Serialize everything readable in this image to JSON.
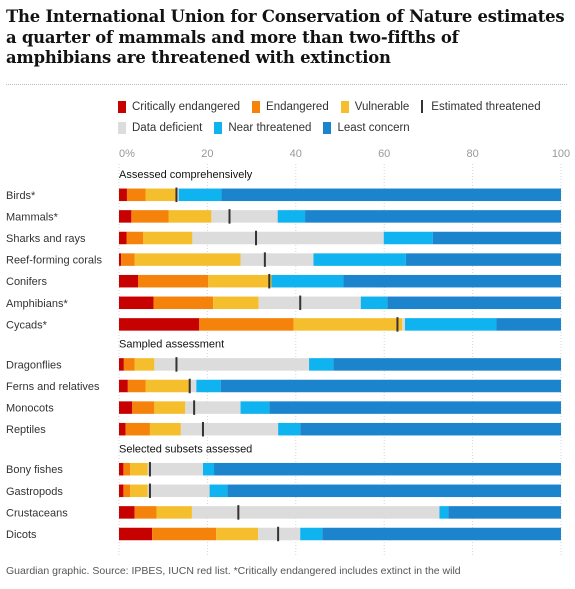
{
  "title": "The International Union for Conservation of Nature estimates a quarter of mammals and more than two-fifths of amphibians are threatened with extinction",
  "legend": [
    {
      "label": "Critically endangered",
      "color": "#c70000"
    },
    {
      "label": "Endangered",
      "color": "#f5820a"
    },
    {
      "label": "Vulnerable",
      "color": "#f5be2c"
    },
    {
      "label": "Estimated threatened",
      "color": "#333333",
      "marker": "tick"
    },
    {
      "label": "Data deficient",
      "color": "#dcdcdc"
    },
    {
      "label": "Near threatened",
      "color": "#0fb3f0"
    },
    {
      "label": "Least concern",
      "color": "#1b84cc"
    }
  ],
  "footer": "Guardian graphic. Source: IPBES, IUCN red list. *Critically endangered includes extinct in the wild",
  "chart_data": {
    "type": "bar",
    "orientation": "horizontal",
    "stacked": true,
    "xlim": [
      0,
      100
    ],
    "x_ticks": [
      "0%",
      "20",
      "40",
      "60",
      "80",
      "100"
    ],
    "grid": true,
    "legend_position": "top",
    "series_names": [
      "Critically endangered",
      "Endangered",
      "Vulnerable",
      "Data deficient",
      "Near threatened",
      "Least concern"
    ],
    "groups": [
      {
        "label": "Assessed comprehensively",
        "rows": [
          {
            "label": "Birds*",
            "values": [
              1.8,
              4.2,
              7.0,
              0.5,
              9.7,
              76.8
            ],
            "threatened": 13.0
          },
          {
            "label": "Mammals*",
            "values": [
              2.8,
              8.4,
              9.7,
              15.0,
              6.2,
              57.9
            ],
            "threatened": 25.0
          },
          {
            "label": "Sharks and rays",
            "values": [
              1.7,
              3.8,
              11.1,
              43.3,
              11.1,
              29.0
            ],
            "threatened": 31.0
          },
          {
            "label": "Reef-forming corals",
            "values": [
              0.5,
              3.0,
              24.0,
              16.5,
              20.9,
              35.1
            ],
            "threatened": 33.0
          },
          {
            "label": "Conifers",
            "values": [
              4.3,
              15.9,
              14.3,
              0.0,
              16.3,
              49.2
            ],
            "threatened": 34.0
          },
          {
            "label": "Amphibians*",
            "values": [
              7.8,
              13.5,
              10.3,
              23.1,
              6.0,
              39.3
            ],
            "threatened": 41.0
          },
          {
            "label": "Cycads*",
            "values": [
              18.1,
              21.4,
              24.6,
              0.6,
              20.7,
              14.6
            ],
            "threatened": 63.0
          }
        ]
      },
      {
        "label": "Sampled assessment",
        "rows": [
          {
            "label": "Dragonflies",
            "values": [
              1.1,
              2.4,
              4.5,
              35.0,
              5.5,
              51.5
            ],
            "threatened": 13.0
          },
          {
            "label": "Ferns and relatives",
            "values": [
              2.0,
              4.0,
              10.0,
              1.5,
              5.5,
              77.0
            ],
            "threatened": 16.0
          },
          {
            "label": "Monocots",
            "values": [
              3.0,
              5.0,
              7.0,
              12.5,
              6.5,
              66.0
            ],
            "threatened": 17.0
          },
          {
            "label": "Reptiles",
            "values": [
              1.5,
              5.5,
              7.0,
              22.0,
              5.0,
              59.0
            ],
            "threatened": 19.0
          }
        ]
      },
      {
        "label": "Selected subsets assessed",
        "rows": [
          {
            "label": "Bony fishes",
            "values": [
              1.0,
              1.5,
              4.0,
              12.5,
              2.5,
              78.5
            ],
            "threatened": 7.0
          },
          {
            "label": "Gastropods",
            "values": [
              1.0,
              1.5,
              4.0,
              14.0,
              4.0,
              75.5
            ],
            "threatened": 7.0
          },
          {
            "label": "Crustaceans",
            "values": [
              3.5,
              5.0,
              8.0,
              56.0,
              2.0,
              25.5
            ],
            "threatened": 27.0
          },
          {
            "label": "Dicots",
            "values": [
              7.5,
              14.5,
              9.5,
              9.5,
              5.0,
              54.0
            ],
            "threatened": 36.0
          }
        ]
      }
    ]
  }
}
